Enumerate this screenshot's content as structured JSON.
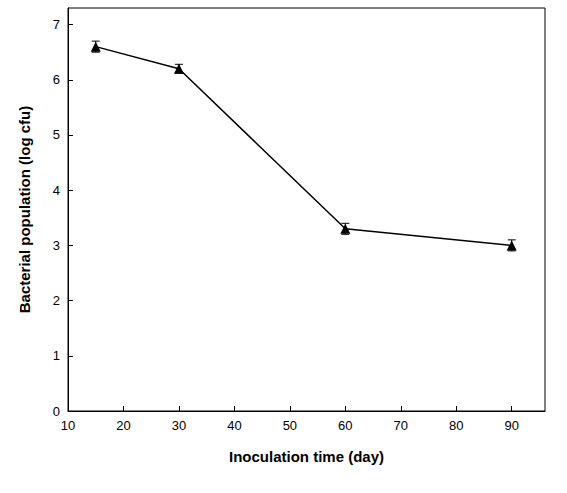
{
  "chart_data": {
    "type": "line",
    "x_label": "Inoculation time (day)",
    "y_label": "Bacterial population (log cfu)",
    "x": [
      15,
      30,
      60,
      90
    ],
    "values": [
      6.6,
      6.2,
      3.3,
      3.0
    ],
    "errors": [
      0.1,
      0.08,
      0.1,
      0.1
    ],
    "color": "#000000",
    "marker": "triangle",
    "xlim": [
      10,
      96
    ],
    "xticks": [
      10,
      20,
      30,
      40,
      50,
      60,
      70,
      80,
      90
    ],
    "ylim": [
      0,
      7.3
    ],
    "yticks": [
      0,
      1,
      2,
      3,
      4,
      5,
      6,
      7
    ],
    "grid": false
  }
}
